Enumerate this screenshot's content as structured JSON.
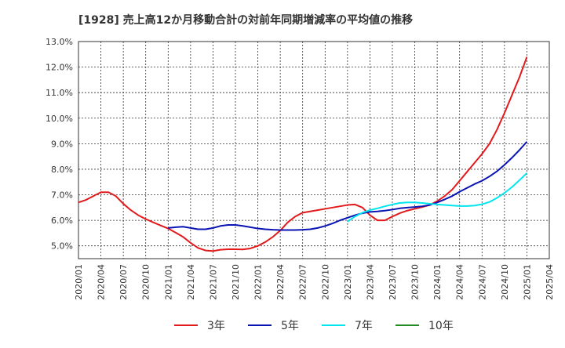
{
  "chart_data": {
    "type": "line",
    "title": "[1928]  売上高12か月移動合計の対前年同期増減率の平均値の推移",
    "xlabel": "",
    "ylabel": "",
    "ylim": [
      4.5,
      13.0
    ],
    "y_ticks": [
      "5.0%",
      "6.0%",
      "7.0%",
      "8.0%",
      "9.0%",
      "10.0%",
      "11.0%",
      "12.0%",
      "13.0%"
    ],
    "x_ticks": [
      "2020/01",
      "2020/04",
      "2020/07",
      "2020/10",
      "2021/01",
      "2021/04",
      "2021/07",
      "2021/10",
      "2022/01",
      "2022/04",
      "2022/07",
      "2022/10",
      "2023/01",
      "2023/04",
      "2023/07",
      "2023/10",
      "2024/01",
      "2024/04",
      "2024/07",
      "2024/10",
      "2025/01",
      "2025/04"
    ],
    "grid": true,
    "legend_position": "bottom",
    "series": [
      {
        "name": "3年",
        "color": "#e31a1c",
        "points": [
          [
            "2020/01",
            6.7
          ],
          [
            "2020/02",
            6.8
          ],
          [
            "2020/03",
            6.95
          ],
          [
            "2020/04",
            7.1
          ],
          [
            "2020/05",
            7.1
          ],
          [
            "2020/06",
            6.95
          ],
          [
            "2020/07",
            6.65
          ],
          [
            "2020/08",
            6.4
          ],
          [
            "2020/09",
            6.2
          ],
          [
            "2020/10",
            6.05
          ],
          [
            "2020/11",
            5.92
          ],
          [
            "2020/12",
            5.8
          ],
          [
            "2021/01",
            5.68
          ],
          [
            "2021/02",
            5.52
          ],
          [
            "2021/03",
            5.35
          ],
          [
            "2021/04",
            5.12
          ],
          [
            "2021/05",
            4.92
          ],
          [
            "2021/06",
            4.82
          ],
          [
            "2021/07",
            4.8
          ],
          [
            "2021/08",
            4.85
          ],
          [
            "2021/09",
            4.87
          ],
          [
            "2021/10",
            4.87
          ],
          [
            "2021/11",
            4.86
          ],
          [
            "2021/12",
            4.9
          ],
          [
            "2022/01",
            5.0
          ],
          [
            "2022/02",
            5.15
          ],
          [
            "2022/03",
            5.35
          ],
          [
            "2022/04",
            5.6
          ],
          [
            "2022/05",
            5.92
          ],
          [
            "2022/06",
            6.15
          ],
          [
            "2022/07",
            6.3
          ],
          [
            "2022/08",
            6.35
          ],
          [
            "2022/09",
            6.4
          ],
          [
            "2022/10",
            6.45
          ],
          [
            "2022/11",
            6.5
          ],
          [
            "2022/12",
            6.55
          ],
          [
            "2023/01",
            6.6
          ],
          [
            "2023/02",
            6.62
          ],
          [
            "2023/03",
            6.5
          ],
          [
            "2023/04",
            6.2
          ],
          [
            "2023/05",
            6.0
          ],
          [
            "2023/06",
            6.0
          ],
          [
            "2023/07",
            6.15
          ],
          [
            "2023/08",
            6.28
          ],
          [
            "2023/09",
            6.38
          ],
          [
            "2023/10",
            6.45
          ],
          [
            "2023/11",
            6.52
          ],
          [
            "2023/12",
            6.6
          ],
          [
            "2024/01",
            6.75
          ],
          [
            "2024/02",
            6.95
          ],
          [
            "2024/03",
            7.2
          ],
          [
            "2024/04",
            7.55
          ],
          [
            "2024/05",
            7.9
          ],
          [
            "2024/06",
            8.25
          ],
          [
            "2024/07",
            8.6
          ],
          [
            "2024/08",
            9.0
          ],
          [
            "2024/09",
            9.55
          ],
          [
            "2024/10",
            10.2
          ],
          [
            "2024/11",
            10.9
          ],
          [
            "2024/12",
            11.6
          ],
          [
            "2025/01",
            12.4
          ]
        ]
      },
      {
        "name": "5年",
        "color": "#0a14b4",
        "points": [
          [
            "2021/01",
            5.7
          ],
          [
            "2021/02",
            5.73
          ],
          [
            "2021/03",
            5.75
          ],
          [
            "2021/04",
            5.7
          ],
          [
            "2021/05",
            5.65
          ],
          [
            "2021/06",
            5.65
          ],
          [
            "2021/07",
            5.7
          ],
          [
            "2021/08",
            5.78
          ],
          [
            "2021/09",
            5.82
          ],
          [
            "2021/10",
            5.82
          ],
          [
            "2021/11",
            5.78
          ],
          [
            "2021/12",
            5.73
          ],
          [
            "2022/01",
            5.68
          ],
          [
            "2022/02",
            5.65
          ],
          [
            "2022/03",
            5.63
          ],
          [
            "2022/04",
            5.62
          ],
          [
            "2022/05",
            5.62
          ],
          [
            "2022/06",
            5.62
          ],
          [
            "2022/07",
            5.63
          ],
          [
            "2022/08",
            5.65
          ],
          [
            "2022/09",
            5.7
          ],
          [
            "2022/10",
            5.78
          ],
          [
            "2022/11",
            5.88
          ],
          [
            "2022/12",
            6.0
          ],
          [
            "2023/01",
            6.1
          ],
          [
            "2023/02",
            6.2
          ],
          [
            "2023/03",
            6.28
          ],
          [
            "2023/04",
            6.33
          ],
          [
            "2023/05",
            6.35
          ],
          [
            "2023/06",
            6.38
          ],
          [
            "2023/07",
            6.42
          ],
          [
            "2023/08",
            6.47
          ],
          [
            "2023/09",
            6.5
          ],
          [
            "2023/10",
            6.52
          ],
          [
            "2023/11",
            6.55
          ],
          [
            "2023/12",
            6.6
          ],
          [
            "2024/01",
            6.7
          ],
          [
            "2024/02",
            6.82
          ],
          [
            "2024/03",
            6.95
          ],
          [
            "2024/04",
            7.12
          ],
          [
            "2024/05",
            7.27
          ],
          [
            "2024/06",
            7.42
          ],
          [
            "2024/07",
            7.55
          ],
          [
            "2024/08",
            7.72
          ],
          [
            "2024/09",
            7.92
          ],
          [
            "2024/10",
            8.17
          ],
          [
            "2024/11",
            8.45
          ],
          [
            "2024/12",
            8.75
          ],
          [
            "2025/01",
            9.08
          ]
        ]
      },
      {
        "name": "7年",
        "color": "#00e5ee",
        "points": [
          [
            "2023/01",
            5.95
          ],
          [
            "2023/02",
            6.15
          ],
          [
            "2023/03",
            6.3
          ],
          [
            "2023/04",
            6.4
          ],
          [
            "2023/05",
            6.47
          ],
          [
            "2023/06",
            6.55
          ],
          [
            "2023/07",
            6.62
          ],
          [
            "2023/08",
            6.68
          ],
          [
            "2023/09",
            6.7
          ],
          [
            "2023/10",
            6.7
          ],
          [
            "2023/11",
            6.68
          ],
          [
            "2023/12",
            6.65
          ],
          [
            "2024/01",
            6.62
          ],
          [
            "2024/02",
            6.6
          ],
          [
            "2024/03",
            6.58
          ],
          [
            "2024/04",
            6.56
          ],
          [
            "2024/05",
            6.56
          ],
          [
            "2024/06",
            6.58
          ],
          [
            "2024/07",
            6.63
          ],
          [
            "2024/08",
            6.72
          ],
          [
            "2024/09",
            6.88
          ],
          [
            "2024/10",
            7.07
          ],
          [
            "2024/11",
            7.3
          ],
          [
            "2024/12",
            7.57
          ],
          [
            "2025/01",
            7.85
          ]
        ]
      },
      {
        "name": "10年",
        "color": "#228b22",
        "points": []
      }
    ]
  }
}
